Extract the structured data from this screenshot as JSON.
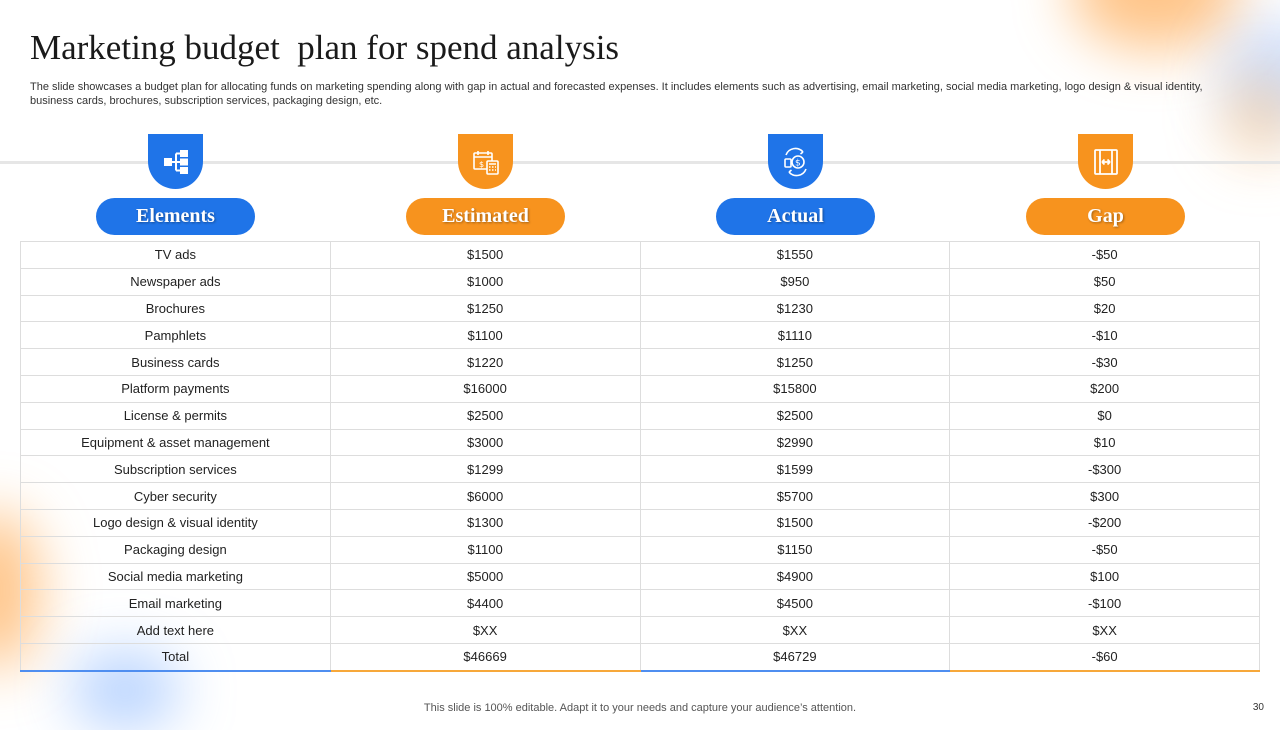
{
  "slide": {
    "title": "Marketing budget  plan for spend analysis",
    "subtitle": "The slide showcases a budget plan for allocating funds on marketing spending along with gap in actual and forecasted expenses. It includes elements such as advertising, email marketing, social media marketing, logo design & visual identity,  business cards, brochures, subscription services, packaging design, etc.",
    "footer": "This slide is 100% editable. Adapt it to your needs and capture your audience’s attention.",
    "page_number": "30"
  },
  "colors": {
    "blue": "#1f74e8",
    "orange": "#f7931e"
  },
  "columns": [
    {
      "label": "Elements",
      "icon": "hierarchy-icon",
      "color": "blue"
    },
    {
      "label": "Estimated",
      "icon": "calendar-calculator-icon",
      "color": "orange"
    },
    {
      "label": "Actual",
      "icon": "money-exchange-icon",
      "color": "blue"
    },
    {
      "label": "Gap",
      "icon": "width-measure-icon",
      "color": "orange"
    }
  ],
  "rows": [
    [
      "TV ads",
      "$1500",
      "$1550",
      "-$50"
    ],
    [
      "Newspaper  ads",
      "$1000",
      "$950",
      "$50"
    ],
    [
      "Brochures",
      "$1250",
      "$1230",
      "$20"
    ],
    [
      "Pamphlets",
      "$1100",
      "$1110",
      "-$10"
    ],
    [
      "Business cards",
      "$1220",
      "$1250",
      "-$30"
    ],
    [
      "Platform payments",
      "$16000",
      "$15800",
      "$200"
    ],
    [
      "License & permits",
      "$2500",
      "$2500",
      "$0"
    ],
    [
      "Equipment & asset management",
      "$3000",
      "$2990",
      "$10"
    ],
    [
      "Subscription services",
      "$1299",
      "$1599",
      "-$300"
    ],
    [
      "Cyber security",
      "$6000",
      "$5700",
      "$300"
    ],
    [
      "Logo design & visual identity",
      "$1300",
      "$1500",
      "-$200"
    ],
    [
      "Packaging design",
      "$1100",
      "$1150",
      "-$50"
    ],
    [
      "Social media marketing",
      "$5000",
      "$4900",
      "$100"
    ],
    [
      "Email marketing",
      "$4400",
      "$4500",
      "-$100"
    ],
    [
      "Add text here",
      "$XX",
      "$XX",
      "$XX"
    ],
    [
      "Total",
      "$46669",
      "$46729",
      "-$60"
    ]
  ]
}
